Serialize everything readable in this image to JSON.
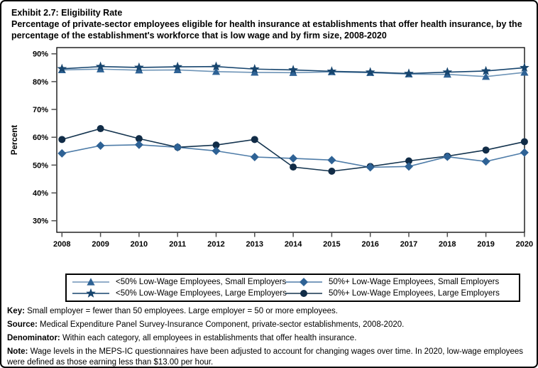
{
  "title": "Exhibit 2.7: Eligibility Rate",
  "subtitle": "Percentage of private-sector employees eligible for health insurance at establishments that offer health insurance, by the percentage of the establishment's workforce that is low wage and by firm size, 2008-2020",
  "chart_data": {
    "type": "line",
    "x": [
      2008,
      2009,
      2010,
      2011,
      2012,
      2013,
      2014,
      2015,
      2016,
      2017,
      2018,
      2019,
      2020
    ],
    "title": "",
    "xlabel": "",
    "ylabel": "Percent",
    "ylim": [
      26,
      92
    ],
    "yticks": [
      30,
      40,
      50,
      60,
      70,
      80,
      90
    ],
    "grid": false,
    "legend_position": "bottom",
    "series": [
      {
        "name": "<50% Low-Wage Employees, Small Employers",
        "marker": "triangle",
        "color": "#2E6295",
        "line_color": "#6E94B7",
        "values": [
          84.2,
          84.5,
          84.1,
          84.2,
          83.6,
          83.3,
          83.2,
          83.5,
          83.2,
          82.7,
          82.6,
          81.8,
          83.3
        ]
      },
      {
        "name": "<50% Low-Wage Employees, Large Employers",
        "marker": "star",
        "color": "#17456E",
        "line_color": "#17456E",
        "values": [
          84.6,
          85.4,
          85.1,
          85.3,
          85.4,
          84.5,
          84.2,
          83.7,
          83.4,
          82.9,
          83.4,
          83.8,
          85.0
        ]
      },
      {
        "name": "50%+ Low-Wage Employees, Small Employers",
        "marker": "diamond",
        "color": "#2E6295",
        "line_color": "#4E7CA8",
        "values": [
          54.2,
          57.0,
          57.3,
          56.4,
          55.1,
          52.9,
          52.4,
          51.8,
          49.2,
          49.5,
          53.0,
          51.3,
          54.5
        ]
      },
      {
        "name": "50%+ Low-Wage Employees, Large Employers",
        "marker": "circle",
        "color": "#112C47",
        "line_color": "#14344F",
        "values": [
          59.2,
          63.1,
          59.5,
          56.4,
          57.2,
          59.2,
          49.3,
          47.8,
          49.5,
          51.5,
          53.2,
          55.4,
          58.4
        ]
      }
    ]
  },
  "footnotes": [
    {
      "label": "Key:",
      "text": "Small employer = fewer than 50 employees. Large employer = 50 or more employees."
    },
    {
      "label": "Source:",
      "text": "Medical Expenditure Panel Survey-Insurance Component, private-sector establishments, 2008-2020."
    },
    {
      "label": "Denominator:",
      "text": "Within each category, all employees in establishments that offer health insurance."
    },
    {
      "label": "Note:",
      "text": "Wage levels in the MEPS-IC questionnaires have been adjusted to account for changing wages over time. In 2020, low-wage employees were defined as those earning less than $13.00 per hour."
    }
  ]
}
